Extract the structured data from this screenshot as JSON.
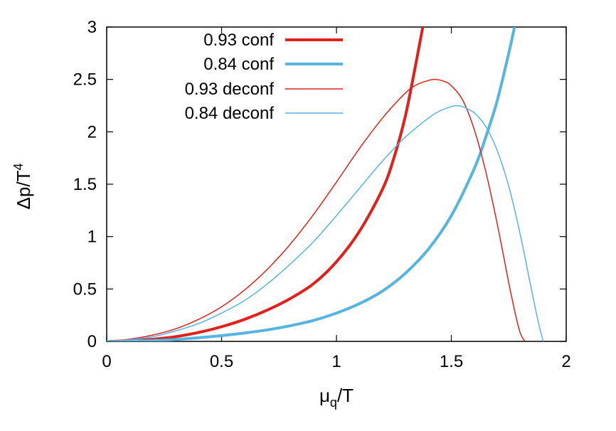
{
  "chart_data": {
    "type": "line",
    "xlabel": "μq/T",
    "xlabel_main": "μ",
    "xlabel_sub": "q",
    "xlabel_tail": "/T",
    "ylabel": "Δp/T4",
    "ylabel_main": "Δp/T",
    "ylabel_sup": "4",
    "xlim": [
      0,
      2
    ],
    "ylim": [
      0,
      3
    ],
    "xticks": [
      0,
      0.5,
      1,
      1.5,
      2
    ],
    "xtick_labels": [
      "0",
      "0.5",
      "1",
      "1.5",
      "2"
    ],
    "yticks": [
      0,
      0.5,
      1,
      1.5,
      2,
      2.5,
      3
    ],
    "ytick_labels": [
      "0",
      "0.5",
      "1",
      "1.5",
      "2",
      "2.5",
      "3"
    ],
    "grid": false,
    "legend_position": "top-left",
    "series": [
      {
        "name": "0.93 conf",
        "color": "#e0201b",
        "style": "thick",
        "x": [
          0,
          0.1,
          0.2,
          0.3,
          0.4,
          0.5,
          0.6,
          0.7,
          0.8,
          0.9,
          1.0,
          1.1,
          1.2,
          1.25,
          1.3,
          1.35,
          1.38,
          1.41
        ],
        "y": [
          0,
          0.005,
          0.02,
          0.045,
          0.085,
          0.14,
          0.21,
          0.3,
          0.41,
          0.55,
          0.76,
          1.05,
          1.45,
          1.75,
          2.15,
          2.7,
          3.05,
          3.4
        ]
      },
      {
        "name": "0.84 conf",
        "color": "#56b4e0",
        "style": "thick",
        "x": [
          0,
          0.1,
          0.2,
          0.3,
          0.4,
          0.5,
          0.6,
          0.7,
          0.8,
          0.9,
          1.0,
          1.1,
          1.2,
          1.3,
          1.4,
          1.5,
          1.6,
          1.65,
          1.7,
          1.75,
          1.78,
          1.8
        ],
        "y": [
          0,
          0.002,
          0.008,
          0.018,
          0.035,
          0.055,
          0.08,
          0.11,
          0.15,
          0.2,
          0.27,
          0.36,
          0.48,
          0.65,
          0.88,
          1.2,
          1.65,
          1.95,
          2.3,
          2.75,
          3.05,
          3.25
        ]
      },
      {
        "name": "0.93  deconf",
        "color": "#e0201b",
        "style": "thin",
        "x": [
          0,
          0.1,
          0.2,
          0.3,
          0.4,
          0.5,
          0.6,
          0.7,
          0.8,
          0.9,
          1.0,
          1.1,
          1.2,
          1.3,
          1.35,
          1.4,
          1.43,
          1.47,
          1.5,
          1.55,
          1.6,
          1.65,
          1.7,
          1.75,
          1.78,
          1.8,
          1.82
        ],
        "y": [
          0,
          0.02,
          0.06,
          0.12,
          0.21,
          0.33,
          0.49,
          0.69,
          0.93,
          1.21,
          1.52,
          1.84,
          2.13,
          2.37,
          2.45,
          2.49,
          2.5,
          2.48,
          2.44,
          2.3,
          2.02,
          1.62,
          1.12,
          0.56,
          0.25,
          0.08,
          0
        ]
      },
      {
        "name": "0.84 deconf",
        "color": "#56b4e0",
        "style": "thin",
        "x": [
          0,
          0.1,
          0.2,
          0.3,
          0.4,
          0.5,
          0.6,
          0.7,
          0.8,
          0.9,
          1.0,
          1.1,
          1.2,
          1.3,
          1.4,
          1.45,
          1.5,
          1.52,
          1.55,
          1.6,
          1.65,
          1.7,
          1.75,
          1.8,
          1.85,
          1.88,
          1.9
        ],
        "y": [
          0,
          0.015,
          0.045,
          0.1,
          0.17,
          0.27,
          0.39,
          0.55,
          0.74,
          0.95,
          1.2,
          1.46,
          1.72,
          1.95,
          2.13,
          2.2,
          2.24,
          2.25,
          2.24,
          2.18,
          2.05,
          1.82,
          1.48,
          1.02,
          0.48,
          0.17,
          0
        ]
      }
    ]
  }
}
